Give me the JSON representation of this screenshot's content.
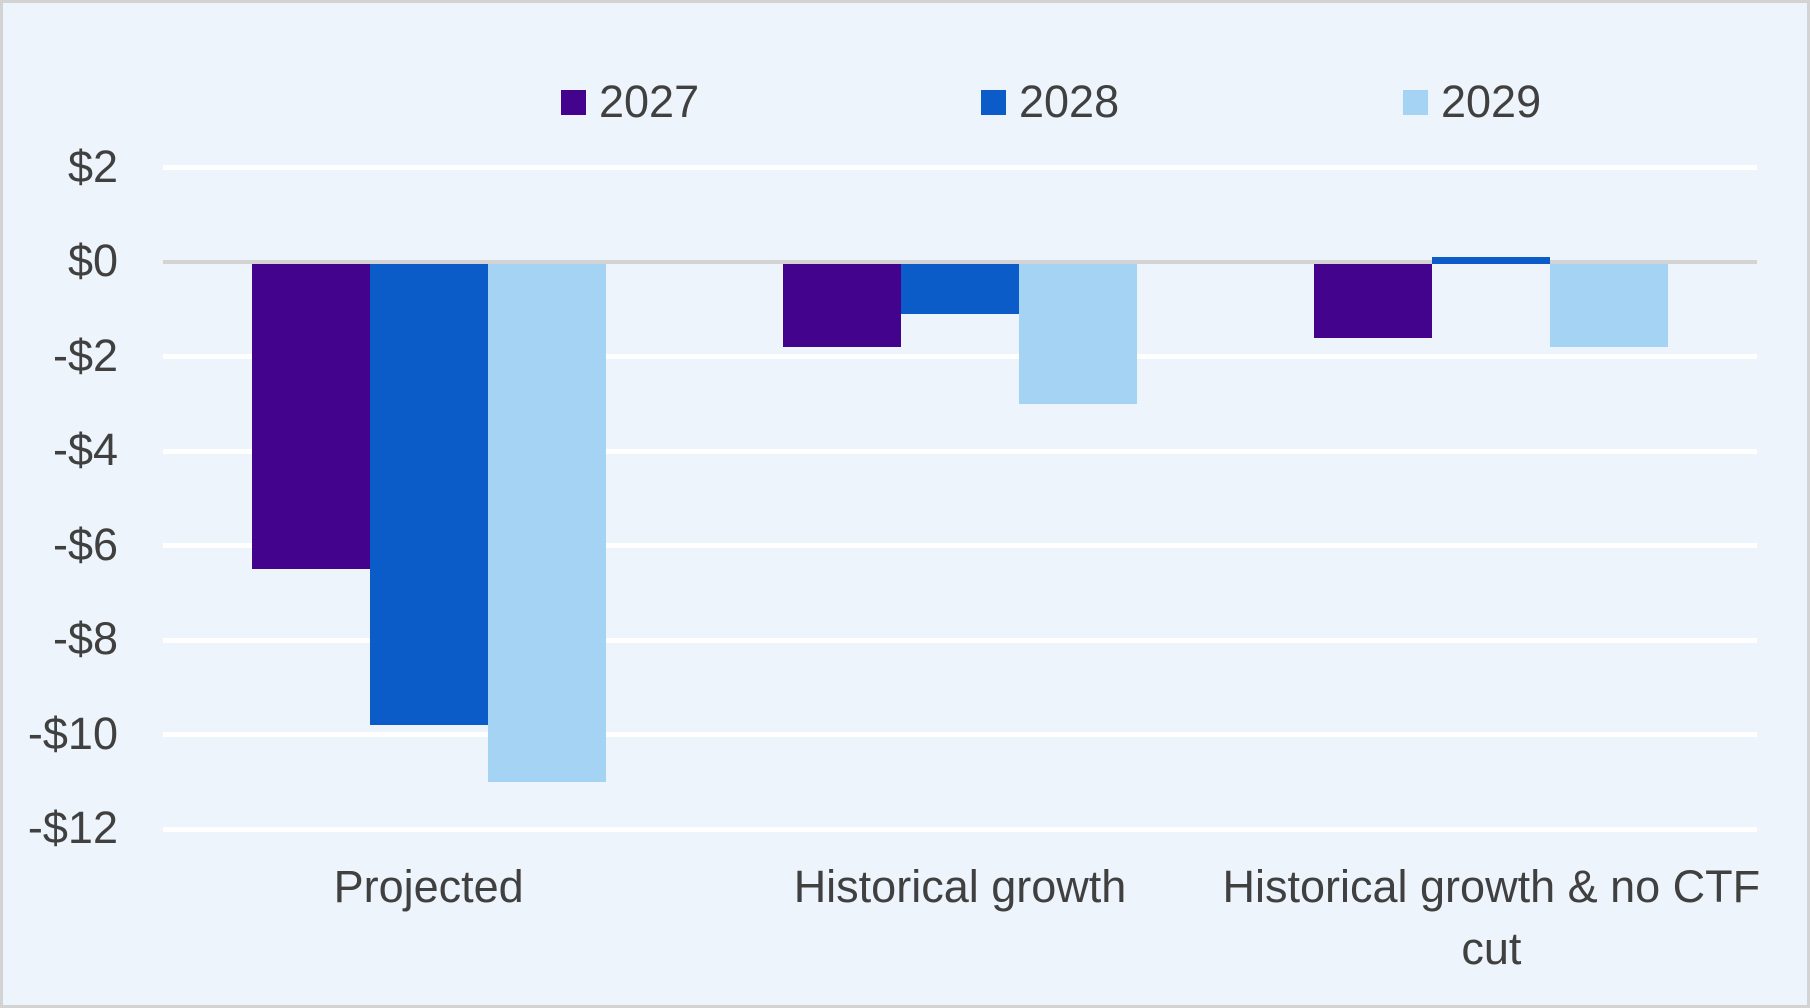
{
  "figure": {
    "background": "#EDF4FB",
    "border_color": "#D3D3D3",
    "text_color": "#404040"
  },
  "chart_data": {
    "type": "bar",
    "title": "",
    "xlabel": "",
    "ylabel": "",
    "legend_position": "top",
    "grid": true,
    "gridline_color": "#FFFFFF",
    "zero_line_color": "#D3D3D3",
    "ylim": [
      -12,
      2
    ],
    "categories": [
      "Projected",
      "Historical growth",
      "Historical growth & no CTF cut"
    ],
    "series": [
      {
        "name": "2027",
        "color": "#44038C",
        "values": [
          -6.5,
          -1.8,
          -1.6
        ]
      },
      {
        "name": "2028",
        "color": "#0B5BC8",
        "values": [
          -9.8,
          -1.1,
          0.1
        ]
      },
      {
        "name": "2029",
        "color": "#A5D3F3",
        "values": [
          -11.0,
          -3.0,
          -1.8
        ]
      }
    ],
    "yticks": [
      {
        "value": 2,
        "label": "$2"
      },
      {
        "value": 0,
        "label": "$0"
      },
      {
        "value": -2,
        "label": "-$2"
      },
      {
        "value": -4,
        "label": "-$4"
      },
      {
        "value": -6,
        "label": "-$6"
      },
      {
        "value": -8,
        "label": "-$8"
      },
      {
        "value": -10,
        "label": "-$10"
      },
      {
        "value": -12,
        "label": "-$12"
      }
    ]
  }
}
